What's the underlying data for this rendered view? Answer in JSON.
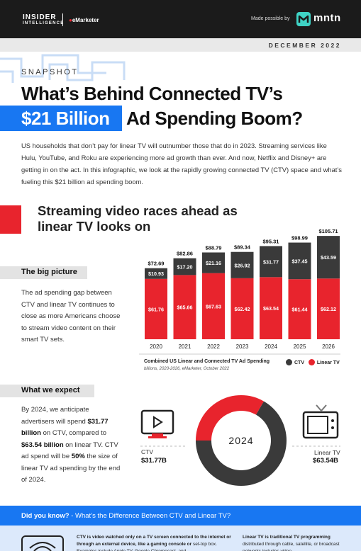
{
  "header": {
    "brand_line1": "INSIDER",
    "brand_line2": "INTELLIGENCE",
    "brand_emarketer": "eMarketer",
    "made_possible": "Made possible by",
    "sponsor": "mntn",
    "date": "DECEMBER 2022"
  },
  "hero": {
    "kicker": "SNAPSHOT",
    "title_line1": "What’s Behind Connected TV’s",
    "title_highlight": "$21 Billion",
    "title_line2_rest": "Ad Spending Boom?",
    "intro": "US households that don’t pay for linear TV will outnumber those that do in 2023. Streaming services like Hulu, YouTube, and Roku are experiencing more ad growth than ever. And now, Netflix and Disney+ are getting in on the act. In this infographic, we look at the rapidly growing connected TV (CTV) space and what’s fueling this $21 billion ad spending boom."
  },
  "section1": {
    "heading": "Streaming video races ahead as linear TV looks on",
    "big_picture_label": "The big picture",
    "big_picture_text": "The ad spending gap between CTV and linear TV continues to close as more Americans choose to stream video content on their smart TV sets."
  },
  "section2": {
    "label": "What we expect",
    "text_parts": [
      "By 2024, we anticipate advertisers will spend ",
      "$31.77 billion",
      " on CTV, compared to ",
      "$63.54 billion",
      " on linear TV. CTV ad spend will be ",
      "50%",
      " the size of linear TV ad spending by the end of 2024."
    ],
    "ctv_label": "CTV",
    "ctv_value": "$31.77B",
    "linear_label": "Linear TV",
    "linear_value": "$63.54B"
  },
  "did_you_know": {
    "lead": "Did you know?",
    "sep": " - ",
    "rest": "What’s the Difference Between CTV and Linear TV?",
    "ctv_def_bold": "CTV is video watched only on a TV screen connected to the internet or through an external device, like a gaming console or",
    "ctv_def_rest": "set-top box. Examples include Apple TV, Google Chromecast, and",
    "linear_def_bold": "Linear TV is traditional TV programming",
    "linear_def_rest": "distributed through cable, satellite, or broadcast networks includes video"
  },
  "colors": {
    "accent_blue": "#1877f2",
    "red": "#e8242d",
    "ctv_dark": "#3a3a3a",
    "header_bg": "#1b1b1b",
    "mntn_teal": "#3fd4c6"
  },
  "chart_data": [
    {
      "type": "bar",
      "stacked": true,
      "title": "Combined US Linear and Connected TV Ad Spending",
      "subtitle": "billions, 2020-2026, eMarketer, October 2022",
      "categories": [
        "2020",
        "2021",
        "2022",
        "2023",
        "2024",
        "2025",
        "2026"
      ],
      "series": [
        {
          "name": "Linear TV",
          "color": "#e8242d",
          "values": [
            61.76,
            65.66,
            67.63,
            62.42,
            63.54,
            61.44,
            62.12
          ],
          "labels": [
            "$61.76",
            "$65.66",
            "$67.63",
            "$62.42",
            "$63.54",
            "$61.44",
            "$62.12"
          ]
        },
        {
          "name": "CTV",
          "color": "#3a3a3a",
          "values": [
            10.93,
            17.2,
            21.16,
            26.92,
            31.77,
            37.45,
            43.59
          ],
          "labels": [
            "$10.93",
            "$17.20",
            "$21.16",
            "$26.92",
            "$31.77",
            "$37.45",
            "$43.59"
          ]
        }
      ],
      "totals": [
        "$72.69",
        "$82.86",
        "$88.79",
        "$89.34",
        "$95.31",
        "$98.99",
        "$105.71"
      ],
      "legend": [
        "CTV",
        "Linear TV"
      ],
      "legend_position": "bottom-right"
    },
    {
      "type": "pie",
      "donut": true,
      "center_label": "2024",
      "slices": [
        {
          "name": "CTV",
          "value": 31.77,
          "color": "#e8242d"
        },
        {
          "name": "Linear TV",
          "value": 63.54,
          "color": "#3a3a3a"
        }
      ]
    }
  ]
}
